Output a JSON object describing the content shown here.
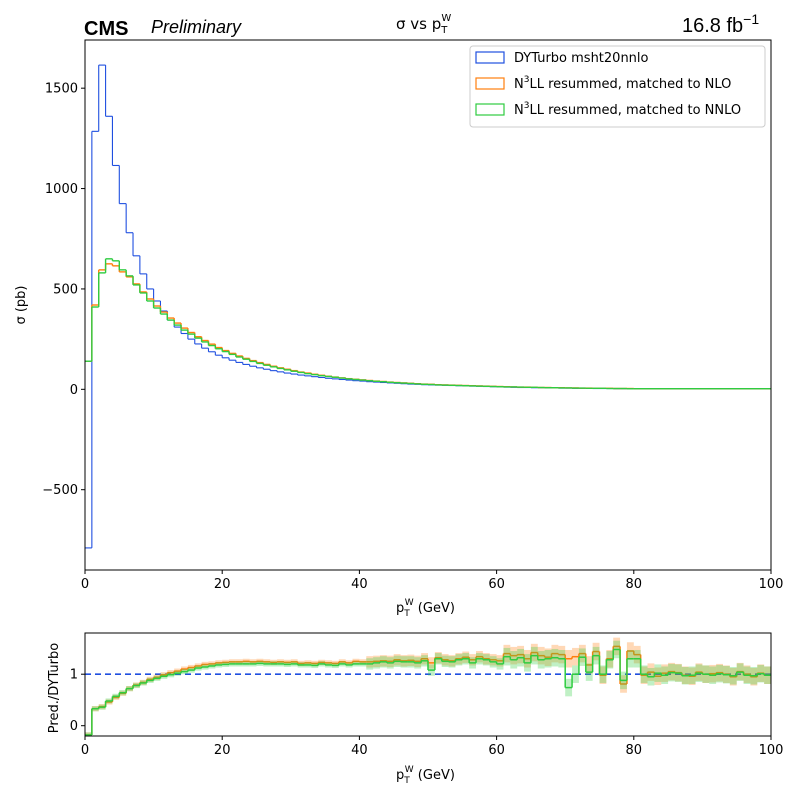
{
  "header": {
    "experiment": "CMS",
    "status": "Preliminary",
    "title": "σ vs p",
    "title_sub": "T",
    "title_sup": "W",
    "lumi": "16.8 fb",
    "lumi_sup": "−1"
  },
  "chart_data": [
    {
      "type": "line",
      "drawstyle": "steps",
      "xlabel": "p",
      "xlabel_sub": "T",
      "xlabel_sup": "W",
      "xlabel_unit": " (GeV)",
      "ylabel": "σ (pb)",
      "xlim": [
        0,
        100
      ],
      "ylim": [
        -900,
        1740
      ],
      "xticks": [
        "0",
        "20",
        "40",
        "60",
        "80",
        "100"
      ],
      "yticks": [
        "−500",
        "0",
        "500",
        "1000",
        "1500"
      ],
      "legend_position": "top-right",
      "bin_edges": [
        0,
        1,
        2,
        3,
        4,
        5,
        6,
        7,
        8,
        9,
        10,
        11,
        12,
        13,
        14,
        15,
        16,
        17,
        18,
        19,
        20,
        21,
        22,
        23,
        24,
        25,
        26,
        27,
        28,
        29,
        30,
        31,
        32,
        33,
        34,
        35,
        36,
        37,
        38,
        39,
        40,
        41,
        42,
        43,
        44,
        45,
        46,
        47,
        48,
        49,
        50,
        51,
        52,
        53,
        54,
        55,
        56,
        57,
        58,
        59,
        60,
        61,
        62,
        63,
        64,
        65,
        66,
        67,
        68,
        69,
        70,
        71,
        72,
        73,
        74,
        75,
        76,
        77,
        78,
        79,
        80,
        100
      ],
      "series": [
        {
          "name": "DYTurbo msht20nnlo",
          "color": "#1f4fe0",
          "values": [
            -790,
            1285,
            1615,
            1360,
            1115,
            925,
            780,
            665,
            575,
            500,
            440,
            390,
            345,
            310,
            278,
            250,
            226,
            205,
            187,
            170,
            157,
            145,
            134,
            124,
            115,
            107,
            100,
            93,
            87,
            81,
            76,
            71,
            67,
            63,
            59,
            55,
            52,
            49,
            46,
            43,
            41,
            38,
            36,
            34,
            32,
            30,
            28,
            26,
            25,
            23,
            22,
            21,
            20,
            19,
            18,
            17,
            16,
            15,
            14,
            13,
            12,
            11,
            10,
            9,
            9,
            8,
            8,
            7,
            7,
            6,
            6,
            5,
            5,
            5,
            4,
            4,
            4,
            3,
            3,
            3,
            2
          ]
        },
        {
          "name": "N³LL resummed, matched to NLO",
          "label_main": "N",
          "label_sup": "3",
          "label_rest": "LL resummed, matched to NLO",
          "color": "#ff7f0e",
          "values": [
            140,
            420,
            595,
            625,
            615,
            585,
            560,
            525,
            485,
            450,
            415,
            385,
            355,
            330,
            305,
            283,
            262,
            243,
            225,
            208,
            193,
            179,
            166,
            154,
            143,
            133,
            124,
            115,
            107,
            100,
            93,
            86,
            81,
            75,
            70,
            65,
            61,
            57,
            53,
            50,
            47,
            44,
            41,
            39,
            36,
            34,
            32,
            30,
            28,
            26,
            25,
            23,
            22,
            21,
            20,
            19,
            18,
            17,
            16,
            15,
            14,
            13,
            12,
            11,
            11,
            10,
            9,
            9,
            8,
            8,
            7,
            7,
            6,
            6,
            5,
            5,
            5,
            4,
            4,
            4,
            3
          ]
        },
        {
          "name": "N³LL resummed, matched to NNLO",
          "label_main": "N",
          "label_sup": "3",
          "label_rest": "LL resummed, matched to NNLO",
          "color": "#2ecc40",
          "values": [
            140,
            410,
            580,
            650,
            640,
            595,
            565,
            520,
            480,
            440,
            405,
            375,
            345,
            320,
            295,
            275,
            255,
            236,
            218,
            202,
            188,
            174,
            161,
            150,
            139,
            129,
            120,
            112,
            104,
            97,
            90,
            84,
            78,
            73,
            68,
            64,
            60,
            56,
            52,
            49,
            46,
            43,
            40,
            38,
            35,
            33,
            31,
            29,
            27,
            25,
            24,
            22,
            21,
            20,
            19,
            18,
            17,
            16,
            15,
            14,
            13,
            12,
            12,
            11,
            10,
            10,
            9,
            8,
            8,
            7,
            7,
            6,
            6,
            5,
            5,
            5,
            4,
            4,
            4,
            3,
            3
          ]
        }
      ]
    },
    {
      "type": "line",
      "drawstyle": "steps",
      "xlabel": "p",
      "xlabel_sub": "T",
      "xlabel_sup": "W",
      "xlabel_unit": " (GeV)",
      "ylabel": "Pred./DYTurbo",
      "xlim": [
        0,
        100
      ],
      "ylim": [
        -0.2,
        1.8
      ],
      "xticks": [
        "0",
        "20",
        "40",
        "60",
        "80",
        "100"
      ],
      "yticks": [
        "0",
        "1"
      ],
      "reference_line": 1,
      "reference_color": "#1f4fe0",
      "bin_edges": [
        0,
        1,
        2,
        3,
        4,
        5,
        6,
        7,
        8,
        9,
        10,
        11,
        12,
        13,
        14,
        15,
        16,
        17,
        18,
        19,
        20,
        21,
        22,
        23,
        24,
        25,
        26,
        27,
        28,
        29,
        30,
        31,
        32,
        33,
        34,
        35,
        36,
        37,
        38,
        39,
        40,
        41,
        42,
        43,
        44,
        45,
        46,
        47,
        48,
        49,
        50,
        51,
        52,
        53,
        54,
        55,
        56,
        57,
        58,
        59,
        60,
        61,
        62,
        63,
        64,
        65,
        66,
        67,
        68,
        69,
        70,
        71,
        72,
        73,
        74,
        75,
        76,
        77,
        78,
        79,
        80,
        81,
        82,
        83,
        84,
        85,
        86,
        87,
        88,
        89,
        90,
        91,
        92,
        93,
        94,
        95,
        96,
        97,
        98,
        99,
        100
      ],
      "series": [
        {
          "name": "N³LL resummed, matched to NLO",
          "color": "#ff7f0e",
          "values": [
            -0.18,
            0.33,
            0.37,
            0.46,
            0.55,
            0.63,
            0.72,
            0.79,
            0.84,
            0.9,
            0.94,
            0.99,
            1.03,
            1.06,
            1.1,
            1.13,
            1.16,
            1.19,
            1.2,
            1.22,
            1.23,
            1.24,
            1.24,
            1.25,
            1.24,
            1.25,
            1.24,
            1.23,
            1.24,
            1.23,
            1.24,
            1.21,
            1.22,
            1.21,
            1.23,
            1.22,
            1.21,
            1.24,
            1.22,
            1.25,
            1.24,
            1.24,
            1.25,
            1.26,
            1.25,
            1.28,
            1.26,
            1.27,
            1.25,
            1.3,
            1.22,
            1.32,
            1.28,
            1.26,
            1.3,
            1.33,
            1.28,
            1.34,
            1.3,
            1.28,
            1.26,
            1.4,
            1.36,
            1.38,
            1.3,
            1.42,
            1.36,
            1.33,
            1.4,
            1.38,
            1.3,
            1.34,
            1.4,
            1.18,
            1.44,
            0.98,
            1.3,
            1.54,
            0.81,
            1.45,
            1.38,
            0.98,
            1.04,
            0.96,
            1.02,
            1.05,
            1.03,
            0.98,
            0.96,
            1.04,
            1.0,
            1.01,
            1.03,
            1.0,
            0.95,
            1.05,
            1.0,
            0.95,
            1.02,
            0.98,
            0.96
          ]
        },
        {
          "name": "N³LL resummed, matched to NNLO",
          "color": "#2ecc40",
          "values": [
            -0.18,
            0.33,
            0.36,
            0.48,
            0.57,
            0.64,
            0.72,
            0.78,
            0.83,
            0.88,
            0.92,
            0.96,
            0.99,
            1.02,
            1.05,
            1.08,
            1.12,
            1.14,
            1.16,
            1.18,
            1.19,
            1.2,
            1.2,
            1.2,
            1.2,
            1.21,
            1.2,
            1.2,
            1.2,
            1.19,
            1.2,
            1.18,
            1.18,
            1.17,
            1.2,
            1.18,
            1.17,
            1.2,
            1.18,
            1.2,
            1.2,
            1.2,
            1.22,
            1.24,
            1.22,
            1.25,
            1.24,
            1.24,
            1.22,
            1.26,
            1.08,
            1.3,
            1.25,
            1.24,
            1.28,
            1.3,
            1.22,
            1.3,
            1.28,
            1.24,
            1.2,
            1.34,
            1.28,
            1.32,
            1.22,
            1.36,
            1.28,
            1.3,
            1.32,
            1.3,
            0.74,
            1.0,
            1.33,
            1.04,
            1.36,
            1.0,
            1.28,
            1.48,
            0.88,
            1.3,
            1.3,
            1.0,
            0.95,
            1.02,
            0.98,
            1.03,
            1.02,
            0.97,
            0.98,
            1.02,
            1.0,
            0.98,
            1.01,
            0.99,
            0.97,
            1.04,
            0.98,
            0.97,
            1.01,
            0.98,
            0.97
          ]
        }
      ]
    }
  ]
}
